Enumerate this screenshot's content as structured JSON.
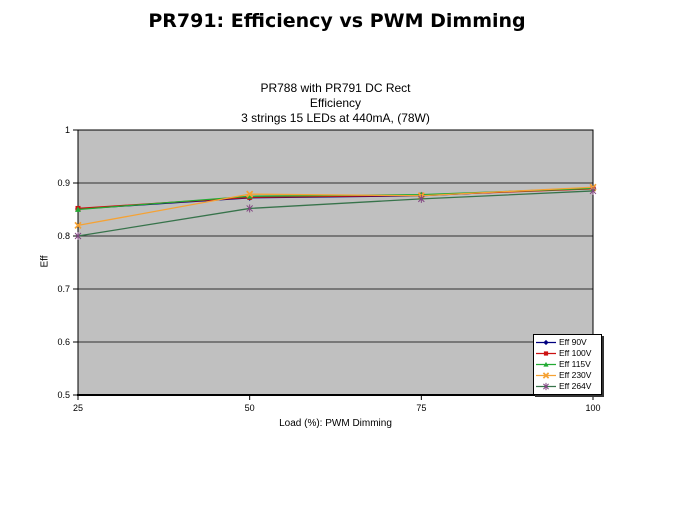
{
  "title": "PR791: Efficiency vs PWM Dimming",
  "chart_data": {
    "type": "line",
    "title_lines": [
      "PR788 with PR791 DC Rect",
      "Efficiency",
      "3 strings 15 LEDs at 440mA, (78W)"
    ],
    "xlabel": "Load (%): PWM Dimming",
    "ylabel": "Eff",
    "x": [
      25,
      50,
      75,
      100
    ],
    "xlim": [
      25,
      100
    ],
    "ylim": [
      0.5,
      1.0
    ],
    "x_ticks": [
      {
        "v": 25,
        "label": "25"
      },
      {
        "v": 50,
        "label": "50"
      },
      {
        "v": 75,
        "label": "75"
      },
      {
        "v": 100,
        "label": "100"
      }
    ],
    "y_ticks": [
      {
        "v": 1.0,
        "label": "1"
      },
      {
        "v": 0.9,
        "label": "0.9"
      },
      {
        "v": 0.8,
        "label": "0.8"
      },
      {
        "v": 0.7,
        "label": "0.7"
      },
      {
        "v": 0.6,
        "label": "0.6"
      },
      {
        "v": 0.5,
        "label": "0.5"
      }
    ],
    "grid": "horizontal",
    "legend_position": "inside bottom-right",
    "plot_bg_color": "#c0c0c0",
    "axis_color": "#000000",
    "series": [
      {
        "name": "Eff 90V",
        "color": "#000080",
        "marker": "diamond",
        "marker_color": "#000080",
        "values": [
          0.851,
          0.872,
          0.876,
          0.891
        ]
      },
      {
        "name": "Eff 100V",
        "color": "#cc1111",
        "marker": "square",
        "marker_color": "#cc1111",
        "values": [
          0.852,
          0.873,
          0.877,
          0.889
        ]
      },
      {
        "name": "Eff 115V",
        "color": "#22aa33",
        "marker": "triangle",
        "marker_color": "#22aa33",
        "values": [
          0.85,
          0.875,
          0.878,
          0.89
        ]
      },
      {
        "name": "Eff 230V",
        "color": "#f5a234",
        "marker": "x",
        "marker_color": "#f5a234",
        "values": [
          0.82,
          0.879,
          0.876,
          0.892
        ]
      },
      {
        "name": "Eff 264V",
        "color": "#37734b",
        "marker": "asterisk",
        "marker_color": "#824682",
        "values": [
          0.8,
          0.852,
          0.87,
          0.885
        ]
      }
    ]
  }
}
